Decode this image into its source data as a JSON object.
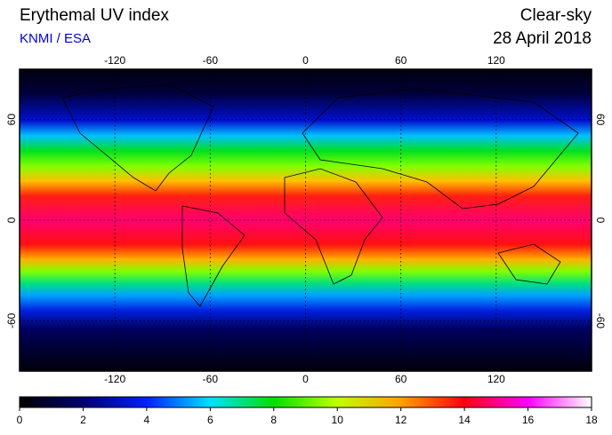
{
  "chart_data": {
    "type": "map",
    "title": "Erythemal UV index",
    "subtitle": "KNMI / ESA",
    "annotations": [
      "Clear-sky",
      "28 April 2018"
    ],
    "xlim": [
      -180,
      180
    ],
    "xticks": [
      -120,
      -60,
      0,
      60,
      120
    ],
    "ylim": [
      -90,
      90
    ],
    "yticks": [
      60,
      0,
      -60
    ],
    "grid": true,
    "colorbar": {
      "lim": [
        0,
        18
      ],
      "ticks": [
        0,
        2,
        4,
        6,
        8,
        10,
        12,
        14,
        16,
        18
      ],
      "colormap": [
        "#000000",
        "#000070",
        "#0020ff",
        "#00e0ff",
        "#00e000",
        "#c0ff00",
        "#ffa000",
        "#ff0010",
        "#ff00ff",
        "#ffffff"
      ]
    }
  }
}
